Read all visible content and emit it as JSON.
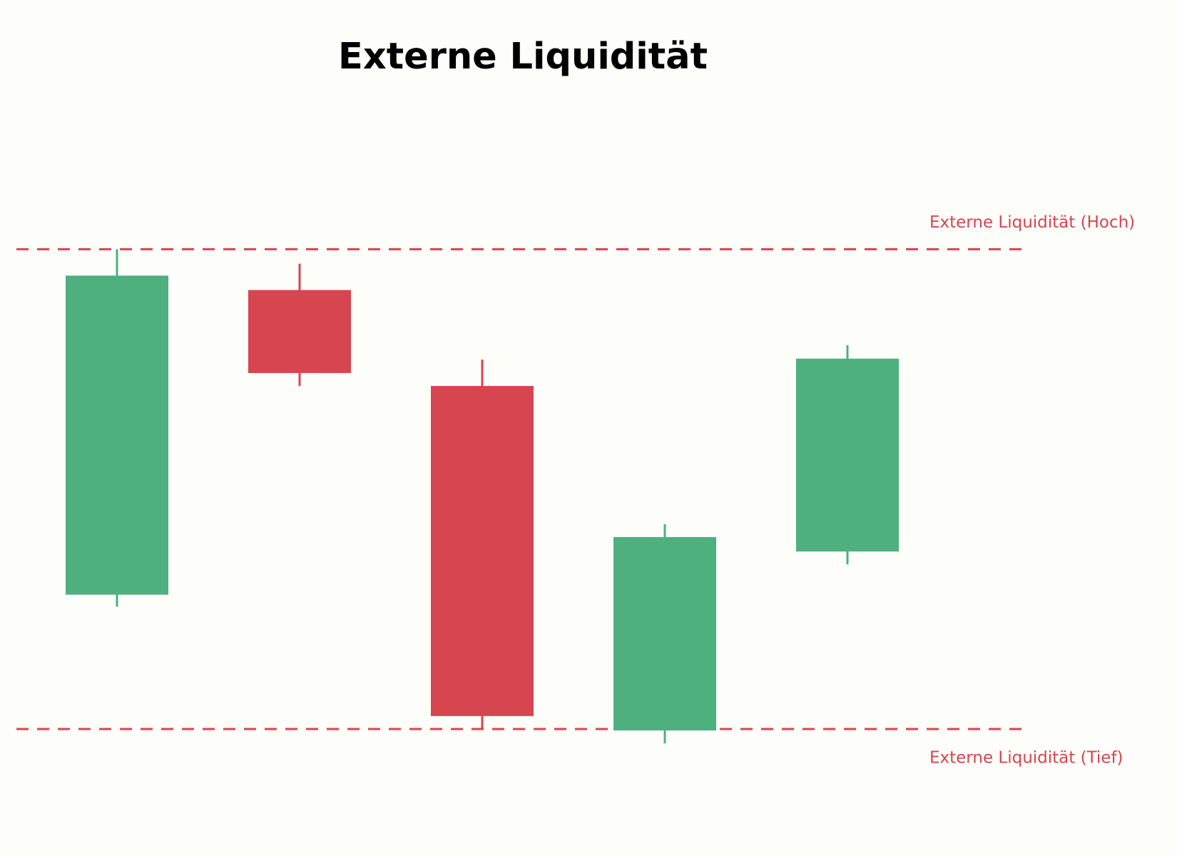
{
  "chart_data": {
    "type": "candlestick",
    "title": "Externe Liquidität",
    "open": [
      2.8,
      9.15,
      7.15,
      -0.03,
      3.7
    ],
    "high": [
      10,
      9.7,
      7.7,
      4.27,
      8.0
    ],
    "low": [
      2.55,
      7.15,
      0,
      -0.3,
      3.43
    ],
    "close": [
      9.45,
      7.42,
      0.27,
      4.0,
      7.72
    ],
    "up_color": "#4eaf7f",
    "down_color": "#d64550",
    "ylim": [
      -2,
      13.5
    ],
    "levels": [
      {
        "label": "Externe Liquidität (Hoch)",
        "value": 10,
        "color": "#d64550",
        "style": "dashed"
      },
      {
        "label": "Externe Liquidität (Tief)",
        "value": 0,
        "color": "#d64550",
        "style": "dashed"
      }
    ]
  }
}
